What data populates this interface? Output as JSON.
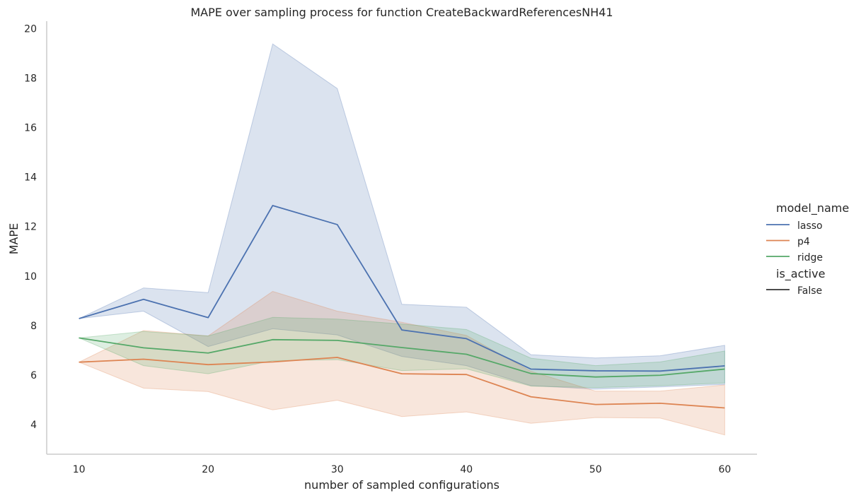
{
  "chart_data": {
    "type": "line",
    "title": "MAPE over sampling process for function CreateBackwardReferencesNH41",
    "xlabel": "number of sampled configurations",
    "ylabel": "MAPE",
    "xlim": [
      7.5,
      62.5
    ],
    "ylim": [
      2.8,
      20.3
    ],
    "xticks": [
      10,
      20,
      30,
      40,
      50,
      60
    ],
    "yticks": [
      4,
      6,
      8,
      10,
      12,
      14,
      16,
      18,
      20
    ],
    "grid": false,
    "legend": {
      "position": "right",
      "title": "model_name",
      "style_title": "is_active",
      "style_entries": [
        "False"
      ]
    },
    "x": [
      10,
      15,
      20,
      25,
      30,
      35,
      40,
      45,
      50,
      55,
      60
    ],
    "series": [
      {
        "name": "lasso",
        "color": "#4c72b0",
        "values": [
          8.28,
          9.06,
          8.32,
          12.85,
          12.08,
          7.82,
          7.47,
          6.24,
          6.17,
          6.16,
          6.37
        ],
        "band_low": [
          8.28,
          8.58,
          7.15,
          7.87,
          7.62,
          6.75,
          6.38,
          5.57,
          5.43,
          5.52,
          5.62
        ],
        "band_high": [
          8.28,
          9.52,
          9.33,
          19.38,
          17.58,
          8.86,
          8.74,
          6.82,
          6.69,
          6.78,
          7.2
        ]
      },
      {
        "name": "p4",
        "color": "#dd8452",
        "values": [
          6.52,
          6.64,
          6.42,
          6.53,
          6.71,
          6.05,
          6.02,
          5.12,
          4.81,
          4.86,
          4.67
        ],
        "band_low": [
          6.52,
          5.47,
          5.33,
          4.59,
          4.98,
          4.32,
          4.51,
          4.05,
          4.28,
          4.26,
          3.58
        ],
        "band_high": [
          6.52,
          7.8,
          7.58,
          9.38,
          8.58,
          8.13,
          7.6,
          6.15,
          5.35,
          5.35,
          5.6
        ]
      },
      {
        "name": "ridge",
        "color": "#55a868",
        "values": [
          7.5,
          7.1,
          6.89,
          7.43,
          7.4,
          7.11,
          6.84,
          6.06,
          5.92,
          5.99,
          6.24
        ],
        "band_low": [
          7.5,
          6.38,
          6.05,
          6.58,
          6.62,
          6.18,
          6.25,
          5.55,
          5.49,
          5.57,
          5.68
        ],
        "band_high": [
          7.5,
          7.76,
          7.58,
          8.33,
          8.26,
          8.06,
          7.84,
          6.68,
          6.38,
          6.53,
          6.97
        ]
      }
    ]
  }
}
